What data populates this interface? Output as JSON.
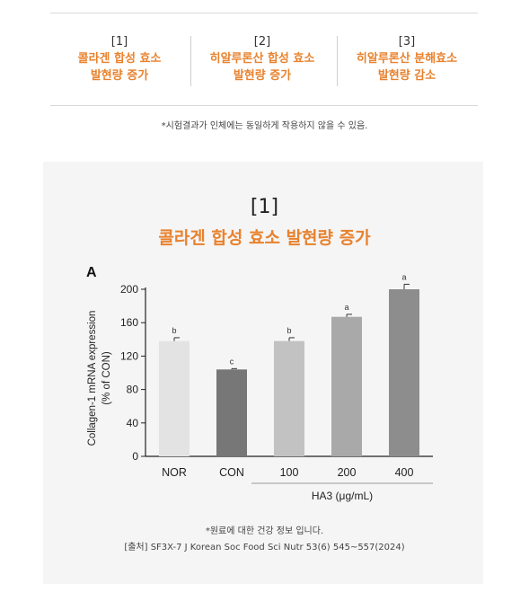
{
  "top": {
    "columns": [
      {
        "num": "[1]",
        "line1": "콜라겐 합성 효소",
        "line2": "발현량 증가"
      },
      {
        "num": "[2]",
        "line1": "히알루론산 합성 효소",
        "line2": "발현량 증가"
      },
      {
        "num": "[3]",
        "line1": "히알루론산 분해효소",
        "line2": "발현량 감소"
      }
    ],
    "note": "*시험결과가 인체에는 동일하게 작용하지 않을 수 있음."
  },
  "panel": {
    "title_num": "[1]",
    "title": "콜라겐 합성 효소 발현량 증가",
    "footnote": "*원료에 대한 건강 정보 입니다.",
    "source": "[출처] SF3X-7 J Korean Soc Food Sci Nutr 53(6) 545~557(2024)"
  },
  "colors": {
    "accent": "#e8822e",
    "bars": [
      "#e3e3e3",
      "#777777",
      "#c2c2c2",
      "#a9a9a9",
      "#8d8d8d"
    ]
  },
  "chart_data": {
    "type": "bar",
    "panel_label": "A",
    "categories": [
      "NOR",
      "CON",
      "100",
      "200",
      "400"
    ],
    "values": [
      138,
      104,
      138,
      167,
      200
    ],
    "errors": [
      4,
      1,
      4,
      3,
      6
    ],
    "sig_labels": [
      "b",
      "c",
      "b",
      "a",
      "a"
    ],
    "ylabel_line1": "Collagen-1 mRNA expression",
    "ylabel_line2": "(% of CON)",
    "group_label": "HA3 (μg/mL)",
    "group_categories": [
      "100",
      "200",
      "400"
    ],
    "ylim": [
      0,
      200
    ],
    "yticks": [
      0,
      40,
      80,
      120,
      160,
      200
    ],
    "grid": false
  }
}
